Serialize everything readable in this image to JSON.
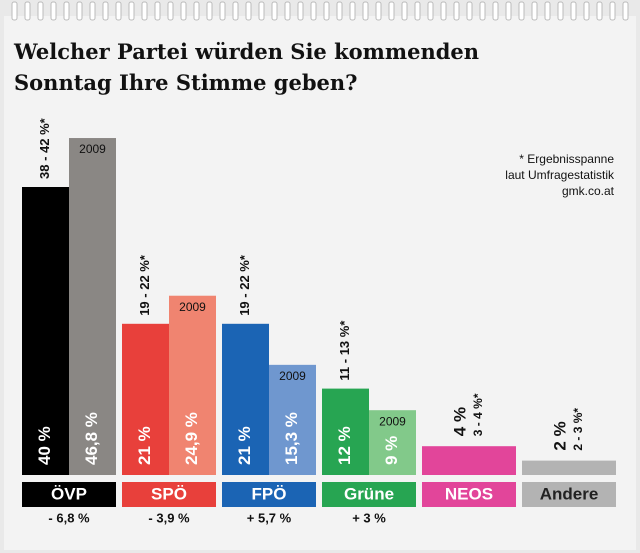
{
  "chart_data": {
    "type": "bar",
    "title": "Welcher Partei würden Sie kommenden Sonntag Ihre Stimme geben?",
    "categories": [
      "ÖVP",
      "SPÖ",
      "FPÖ",
      "Grüne",
      "NEOS",
      "Andere"
    ],
    "series": [
      {
        "values": [
          40,
          21,
          21,
          12,
          4,
          2
        ],
        "value_labels": [
          "40 %",
          "21 %",
          "21 %",
          "12 %",
          "4 %",
          "2 %"
        ],
        "colors": [
          "#000000",
          "#e8403b",
          "#1b64b4",
          "#27a552",
          "#e2459a",
          "#b3b3b3"
        ]
      },
      {
        "name": "2009",
        "values": [
          46.8,
          24.9,
          15.3,
          9,
          null,
          null
        ],
        "value_labels": [
          "46,8 %",
          "24,9 %",
          "15,3 %",
          "9 %",
          null,
          null
        ],
        "colors": [
          "#8a8784",
          "#f08470",
          "#6f97cf",
          "#82c98a",
          null,
          null
        ]
      }
    ],
    "ranges": [
      "38 - 42 %*",
      "19 - 22 %*",
      "19 - 22 %*",
      "11 - 13 %*",
      "3 - 4 %*",
      "2 - 3 %*"
    ],
    "changes": [
      "- 6,8 %",
      "- 3,9 %",
      "+ 5,7 %",
      "+ 3 %",
      null,
      null
    ],
    "note": [
      "* Ergebnisspanne",
      "laut Umfragestatistik",
      "gmk.co.at"
    ]
  }
}
